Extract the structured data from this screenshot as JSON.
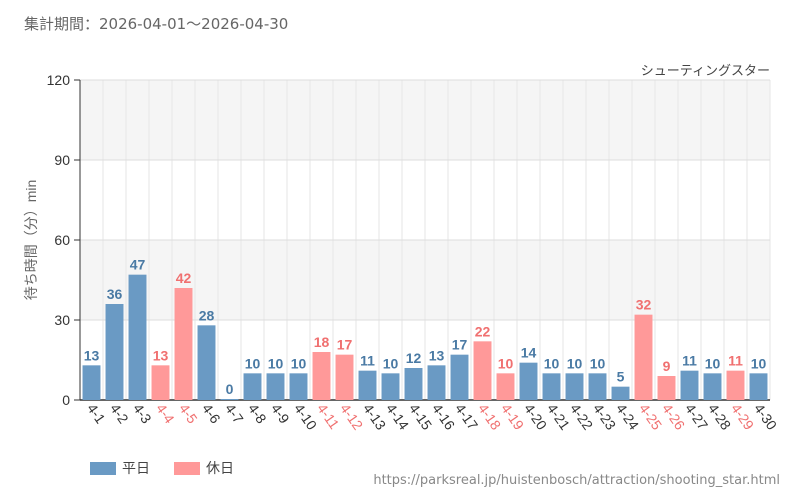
{
  "header": {
    "period_label": "集計期間：2026-04-01～2026-04-30"
  },
  "footer": {
    "source": "https://parksreal.jp/huistenbosch/attraction/shooting_star.html"
  },
  "colors": {
    "weekday": "#6a9ac4",
    "holiday": "#ff9999",
    "weekday_text": "#4a7aa4",
    "holiday_text": "#f07070"
  },
  "chart_data": {
    "type": "bar",
    "attraction": "シューティングスター",
    "ylabel": "待ち時間（分）min",
    "ylim": [
      0,
      120
    ],
    "yticks": [
      0,
      30,
      60,
      90,
      120
    ],
    "categories": [
      "4-1",
      "4-2",
      "4-3",
      "4-4",
      "4-5",
      "4-6",
      "4-7",
      "4-8",
      "4-9",
      "4-10",
      "4-11",
      "4-12",
      "4-13",
      "4-14",
      "4-15",
      "4-16",
      "4-17",
      "4-18",
      "4-19",
      "4-20",
      "4-21",
      "4-22",
      "4-23",
      "4-24",
      "4-25",
      "4-26",
      "4-27",
      "4-28",
      "4-29",
      "4-30"
    ],
    "values": [
      13,
      36,
      47,
      13,
      42,
      28,
      0,
      10,
      10,
      10,
      18,
      17,
      11,
      10,
      12,
      13,
      17,
      22,
      10,
      14,
      10,
      10,
      10,
      5,
      32,
      9,
      11,
      10,
      11,
      10
    ],
    "day_type": [
      "weekday",
      "weekday",
      "weekday",
      "holiday",
      "holiday",
      "weekday",
      "weekday",
      "weekday",
      "weekday",
      "weekday",
      "holiday",
      "holiday",
      "weekday",
      "weekday",
      "weekday",
      "weekday",
      "weekday",
      "holiday",
      "holiday",
      "weekday",
      "weekday",
      "weekday",
      "weekday",
      "weekday",
      "holiday",
      "holiday",
      "weekday",
      "weekday",
      "holiday",
      "weekday"
    ],
    "legend": [
      {
        "key": "weekday",
        "label": "平日"
      },
      {
        "key": "holiday",
        "label": "休日"
      }
    ]
  }
}
